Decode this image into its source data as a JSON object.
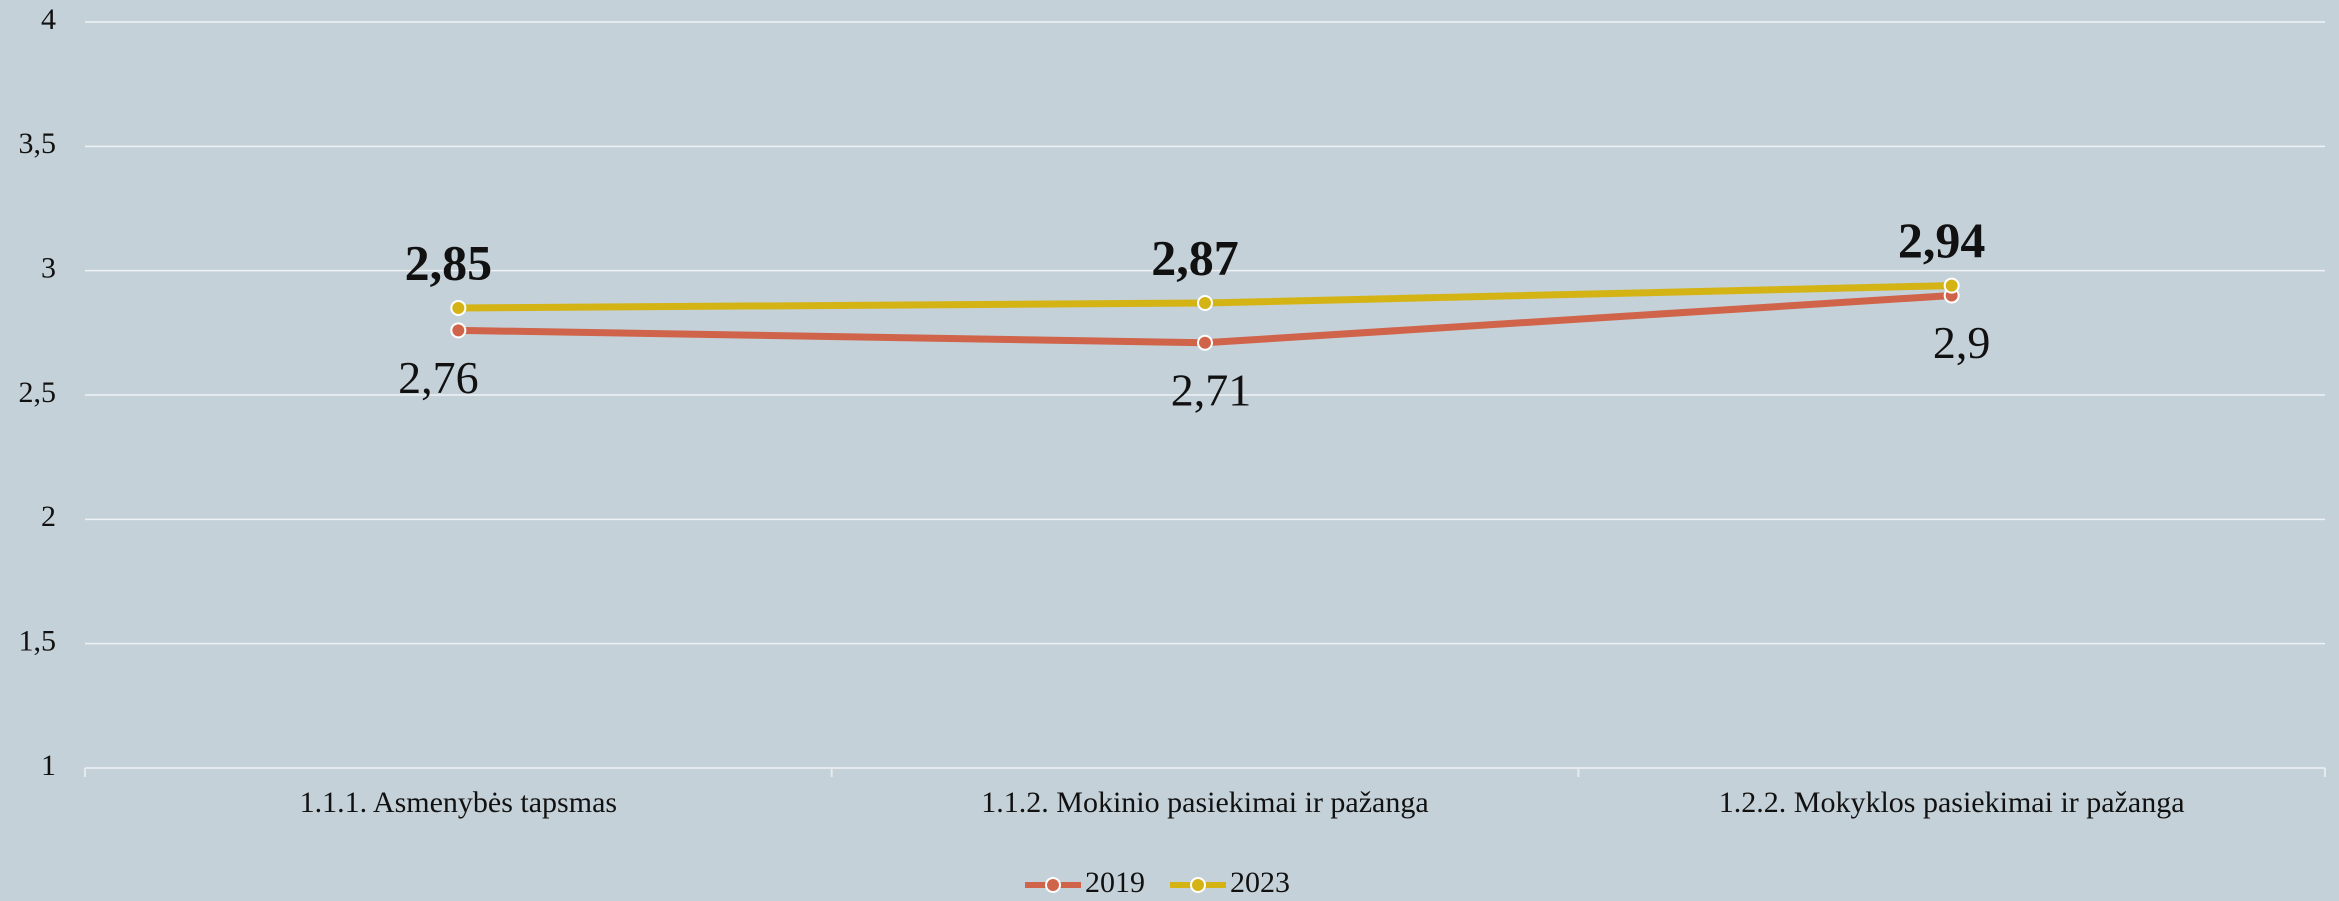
{
  "chart_data": {
    "type": "line",
    "categories": [
      "1.1.1. Asmenybės tapsmas",
      "1.1.2. Mokinio pasiekimai ir pažanga",
      "1.2.2. Mokyklos pasiekimai ir pažanga"
    ],
    "series": [
      {
        "name": "2019",
        "color": "#d0644a",
        "values": [
          2.76,
          2.71,
          2.9
        ],
        "value_labels": [
          "2,76",
          "2,71",
          "2,9"
        ]
      },
      {
        "name": "2023",
        "color": "#d4b414",
        "values": [
          2.85,
          2.87,
          2.94
        ],
        "value_labels": [
          "2,85",
          "2,87",
          "2,94"
        ]
      }
    ],
    "ylim": [
      1,
      4
    ],
    "yticks": [
      1,
      {
        "value": 1.5,
        "label": "1,5"
      },
      2,
      {
        "value": 2.5,
        "label": "2,5"
      },
      3,
      {
        "value": 3.5,
        "label": "3,5"
      },
      4
    ],
    "grid": true,
    "legend": "bottom"
  }
}
